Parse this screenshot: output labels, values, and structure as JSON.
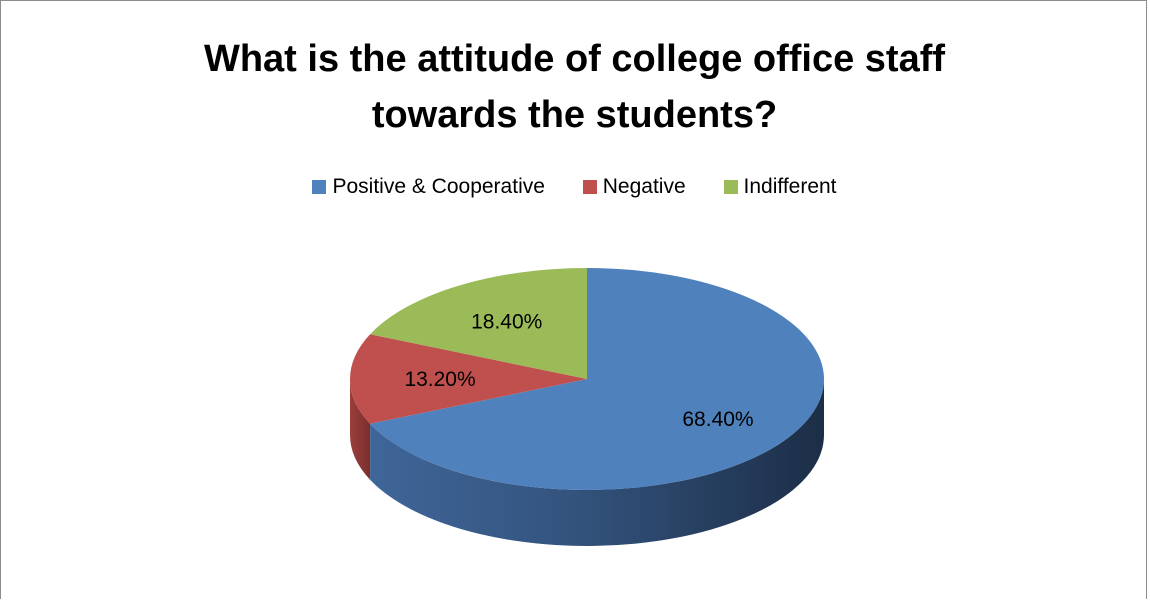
{
  "chart_data": {
    "type": "pie",
    "title_lines": [
      "What is the attitude of college office staff",
      "towards the students?"
    ],
    "legend_position": "top",
    "slices": [
      {
        "name": "Positive & Cooperative",
        "value": 68.4,
        "label": "68.40%",
        "color": "#4F81BD"
      },
      {
        "name": "Negative",
        "value": 13.2,
        "label": "13.20%",
        "color": "#C0504D"
      },
      {
        "name": "Indifferent",
        "value": 18.4,
        "label": "18.40%",
        "color": "#9BBB59"
      }
    ]
  }
}
